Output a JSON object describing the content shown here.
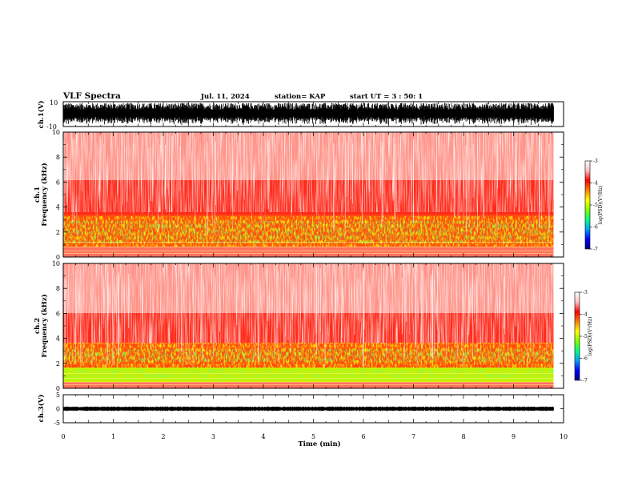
{
  "header": {
    "title": "VLF Spectra",
    "date": "Jul. 11, 2024",
    "station": "station= KAP",
    "start": "start UT =  3 : 50: 1"
  },
  "colors": {
    "waveform": "#000000",
    "colorbar_stops": [
      "#000080",
      "#0000ff",
      "#00a0ff",
      "#00ff80",
      "#80ff00",
      "#ffff00",
      "#ff8000",
      "#ff0000",
      "#ffc0c0",
      "#ffffff"
    ]
  },
  "chart_data": [
    {
      "type": "line",
      "panel": "waveform ch.1",
      "ylabel": "ch.1(V)",
      "ylim": [
        -10,
        10
      ],
      "y_ticks": [
        "10",
        "-10"
      ],
      "x_range": [
        0,
        10
      ],
      "signal_end_min": 9.8,
      "values_range": [
        -10,
        10
      ]
    },
    {
      "type": "heatmap",
      "panel": "spectrogram ch.1",
      "ylabel": "ch.1\nFrequency (kHz)",
      "ylim": [
        0,
        10
      ],
      "y_ticks": [
        "0",
        "2",
        "4",
        "6",
        "8",
        "10"
      ],
      "x_range": [
        0,
        10
      ],
      "signal_end_min": 9.8,
      "colorbar_label": "log(PSD)(V²/Hz)",
      "colorbar_range": [
        -7,
        -3
      ],
      "colorbar_ticks": [
        "-3",
        "-4",
        "-5",
        "-6",
        "-7"
      ],
      "profile": [
        {
          "freq_khz": 1.5,
          "log_psd": -4.3
        },
        {
          "freq_khz": 3.0,
          "log_psd": -4.1
        },
        {
          "freq_khz": 5.0,
          "log_psd": -3.6
        },
        {
          "freq_khz": 8.0,
          "log_psd": -3.3
        }
      ]
    },
    {
      "type": "heatmap",
      "panel": "spectrogram ch.2",
      "ylabel": "ch.2\nFrequency (kHz)",
      "ylim": [
        0,
        10
      ],
      "y_ticks": [
        "0",
        "2",
        "4",
        "6",
        "8",
        "10"
      ],
      "x_range": [
        0,
        10
      ],
      "signal_end_min": 9.8,
      "colorbar_label": "log(PSD)(V²/Hz)",
      "colorbar_range": [
        -7,
        -3
      ],
      "colorbar_ticks": [
        "-3",
        "-4",
        "-5",
        "-6",
        "-7"
      ],
      "profile": [
        {
          "freq_khz": 1.0,
          "log_psd": -4.8
        },
        {
          "freq_khz": 2.5,
          "log_psd": -4.3
        },
        {
          "freq_khz": 5.0,
          "log_psd": -3.7
        },
        {
          "freq_khz": 8.0,
          "log_psd": -3.3
        }
      ]
    },
    {
      "type": "line",
      "panel": "waveform ch.3",
      "ylabel": "ch.3(V)",
      "ylim": [
        -5,
        5
      ],
      "y_ticks": [
        "5",
        "0",
        "-5"
      ],
      "x_range": [
        0,
        10
      ],
      "signal_end_min": 9.8,
      "values_range": [
        -0.8,
        0.8
      ]
    }
  ],
  "x_axis": {
    "label": "Time (min)",
    "ticks": [
      "0",
      "1",
      "2",
      "3",
      "4",
      "5",
      "6",
      "7",
      "8",
      "9",
      "10"
    ]
  }
}
